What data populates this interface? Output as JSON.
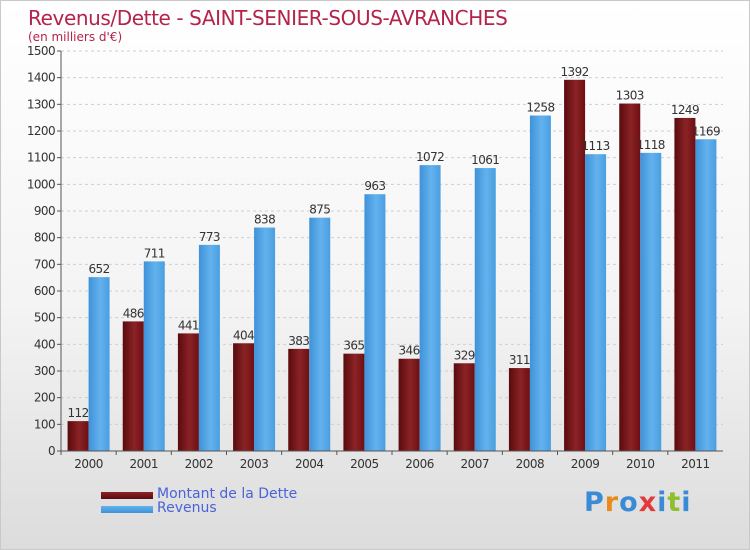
{
  "title": "Revenus/Dette - SAINT-SENIER-SOUS-AVRANCHES",
  "subtitle": "(en milliers d'€)",
  "legend": [
    {
      "label": "Montant de la Dette",
      "color": "#6e0f12"
    },
    {
      "label": "Revenus",
      "color": "#4a9ee0"
    }
  ],
  "logo": {
    "letters": [
      "P",
      "r",
      "o",
      "x",
      "i",
      "t",
      "i"
    ],
    "colors": [
      "#3a8bd6",
      "#e88b1a",
      "#3a8bd6",
      "#e23a3a",
      "#3a8bd6",
      "#8fbf2f",
      "#3a8bd6"
    ]
  },
  "chart_data": {
    "type": "bar",
    "categories": [
      "2000",
      "2001",
      "2002",
      "2003",
      "2004",
      "2005",
      "2006",
      "2007",
      "2008",
      "2009",
      "2010",
      "2011"
    ],
    "series": [
      {
        "name": "Montant de la Dette",
        "color": "#6e0f12",
        "values": [
          112,
          486,
          441,
          404,
          383,
          365,
          346,
          329,
          311,
          1392,
          1303,
          1249
        ]
      },
      {
        "name": "Revenus",
        "color": "#4a9ee0",
        "values": [
          652,
          711,
          773,
          838,
          875,
          963,
          1072,
          1061,
          1258,
          1113,
          1118,
          1169
        ]
      }
    ],
    "yticks": [
      0,
      100,
      200,
      300,
      400,
      500,
      600,
      700,
      800,
      900,
      1000,
      1100,
      1200,
      1300,
      1400,
      1500
    ],
    "ylim": [
      0,
      1500
    ],
    "grid": true,
    "legend_position": "bottom-left"
  }
}
